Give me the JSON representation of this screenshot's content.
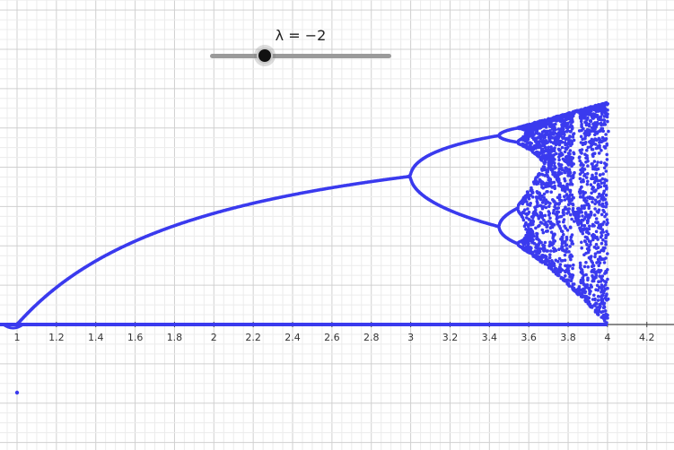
{
  "slider": {
    "label": "λ = −2",
    "min": -5,
    "max": 5,
    "value": -2
  },
  "colors": {
    "points": "#3a3aee",
    "grid_minor": "#ececec",
    "grid_major": "#d0d0d0",
    "axis": "#444444",
    "slider_track": "#9a9a9a"
  },
  "chart_data": {
    "type": "scatter",
    "title": "",
    "xlabel": "",
    "ylabel": "",
    "xlim": [
      0.9,
      4.3
    ],
    "x_ticks": [
      "1",
      "1.2",
      "1.4",
      "1.6",
      "1.8",
      "2",
      "2.2",
      "2.4",
      "2.6",
      "2.8",
      "3",
      "3.2",
      "3.4",
      "3.6",
      "3.8",
      "4",
      "4.2"
    ],
    "grid": true,
    "series": [
      {
        "description_of": "bifurcation points",
        "x_range": [
          1,
          4
        ],
        "branches": [
          {
            "points": [
              [
                1,
                0
              ],
              [
                2,
                0.5
              ],
              [
                3,
                0.667
              ]
            ]
          },
          {
            "points": [
              [
                3,
                0.667
              ],
              [
                3.449,
                0.85
              ],
              [
                3.449,
                0.44
              ]
            ]
          },
          {
            "points": [
              [
                3.449,
                0.85
              ],
              [
                3.544,
                0.88
              ],
              [
                3.544,
                0.82
              ],
              [
                3.544,
                0.5
              ],
              [
                3.544,
                0.37
              ]
            ]
          },
          {
            "points": [
              [
                3.57,
                0.3
              ],
              [
                4,
                1.0
              ]
            ]
          }
        ],
        "zero_line": [
          [
            0.9,
            0
          ],
          [
            4,
            0
          ]
        ],
        "stray_point": [
          1,
          -0.4
        ]
      }
    ]
  }
}
